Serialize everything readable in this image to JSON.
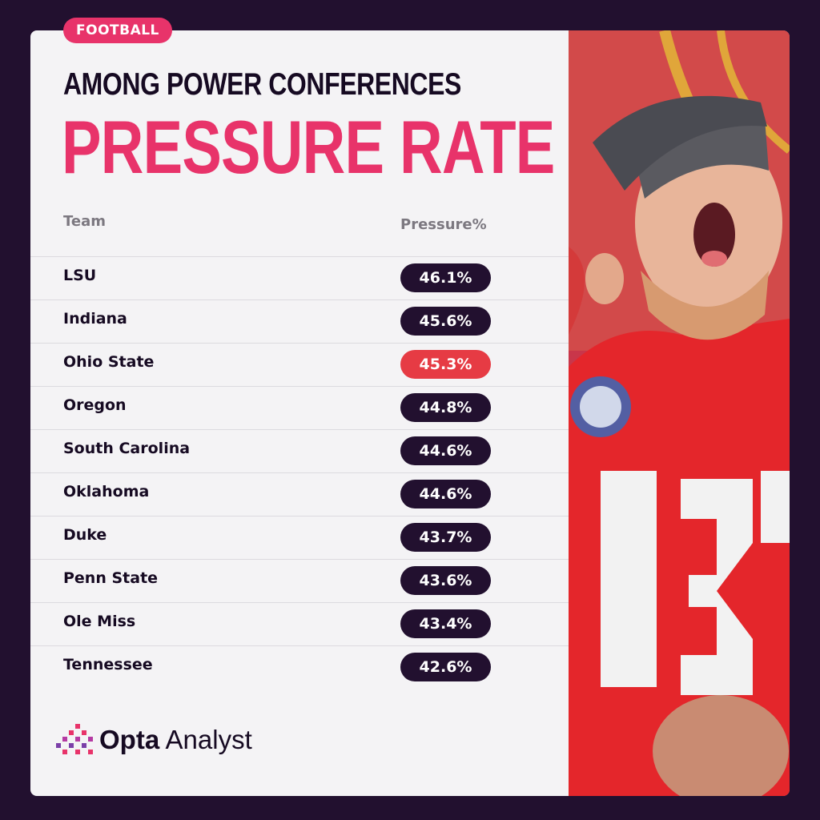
{
  "tag": "FOOTBALL",
  "subtitle": "AMONG POWER CONFERENCES",
  "title": "PRESSURE RATE",
  "columns": {
    "team": "Team",
    "value": "Pressure%"
  },
  "brand": {
    "bold": "Opta",
    "regular": "Analyst"
  },
  "colors": {
    "accent": "#e8336a",
    "highlight": "#e63b44",
    "dark": "#22102f"
  },
  "chart_data": {
    "type": "table",
    "columns": [
      "Team",
      "Pressure%"
    ],
    "rows": [
      {
        "team": "LSU",
        "value": "46.1%",
        "highlight": false
      },
      {
        "team": "Indiana",
        "value": "45.6%",
        "highlight": false
      },
      {
        "team": "Ohio State",
        "value": "45.3%",
        "highlight": true
      },
      {
        "team": "Oregon",
        "value": "44.8%",
        "highlight": false
      },
      {
        "team": "South Carolina",
        "value": "44.6%",
        "highlight": false
      },
      {
        "team": "Oklahoma",
        "value": "44.6%",
        "highlight": false
      },
      {
        "team": "Duke",
        "value": "43.7%",
        "highlight": false
      },
      {
        "team": "Penn State",
        "value": "43.6%",
        "highlight": false
      },
      {
        "team": "Ole Miss",
        "value": "43.4%",
        "highlight": false
      },
      {
        "team": "Tennessee",
        "value": "42.6%",
        "highlight": false
      }
    ]
  }
}
